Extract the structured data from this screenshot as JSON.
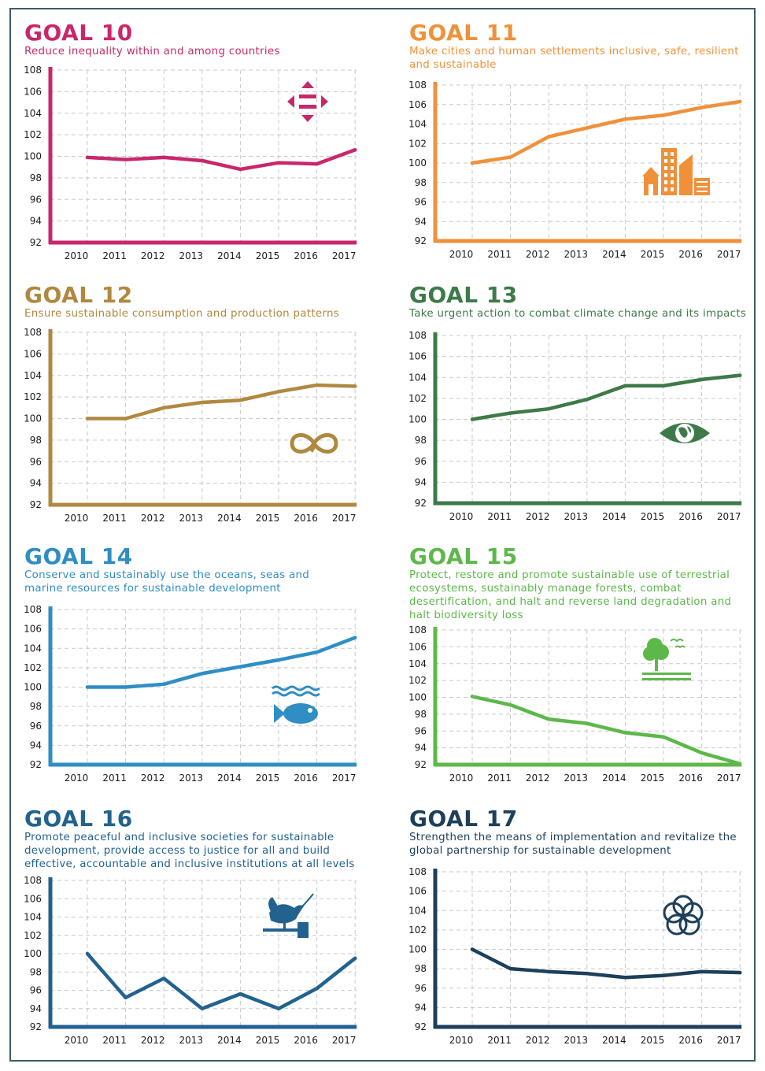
{
  "chart_data": [
    {
      "type": "line",
      "goal_label": "GOAL 10",
      "subtitle": "Reduce inequality within and among countries",
      "color": "#c8286b",
      "icon": "reduced-inequality-icon",
      "x": [
        "2010",
        "2011",
        "2012",
        "2013",
        "2014",
        "2015",
        "2016",
        "2017"
      ],
      "yticks": [
        "108",
        "106",
        "104",
        "102",
        "100",
        "98",
        "96",
        "94",
        "92"
      ],
      "ylim": [
        92,
        108
      ],
      "values": [
        99.9,
        99.7,
        99.9,
        99.6,
        98.8,
        99.4,
        99.3,
        100.6
      ],
      "grid": true
    },
    {
      "type": "line",
      "goal_label": "GOAL 11",
      "subtitle": "Make cities and human settlements inclusive, safe, resilient and sustainable",
      "color": "#f0913a",
      "icon": "sustainable-cities-icon",
      "x": [
        "2010",
        "2011",
        "2012",
        "2013",
        "2014",
        "2015",
        "2016",
        "2017"
      ],
      "yticks": [
        "108",
        "106",
        "104",
        "102",
        "100",
        "98",
        "96",
        "94",
        "92"
      ],
      "ylim": [
        92,
        108
      ],
      "values": [
        100.0,
        100.6,
        102.7,
        103.6,
        104.5,
        104.9,
        105.7,
        106.3
      ],
      "grid": true
    },
    {
      "type": "line",
      "goal_label": "GOAL 12",
      "subtitle": "Ensure sustainable consumption and production patterns",
      "color": "#b08840",
      "icon": "responsible-consumption-icon",
      "x": [
        "2010",
        "2011",
        "2012",
        "2013",
        "2014",
        "2015",
        "2016",
        "2017"
      ],
      "yticks": [
        "108",
        "106",
        "104",
        "102",
        "100",
        "98",
        "96",
        "94",
        "92"
      ],
      "ylim": [
        92,
        108
      ],
      "values": [
        100.0,
        100.0,
        101.0,
        101.5,
        101.7,
        102.5,
        103.1,
        103.0
      ],
      "grid": true
    },
    {
      "type": "line",
      "goal_label": "GOAL 13",
      "subtitle": "Take urgent action to combat climate change and its impacts",
      "color": "#3e7a49",
      "icon": "climate-action-eye-icon",
      "x": [
        "2010",
        "2011",
        "2012",
        "2013",
        "2014",
        "2015",
        "2016",
        "2017"
      ],
      "yticks": [
        "108",
        "106",
        "104",
        "102",
        "100",
        "98",
        "96",
        "94",
        "92"
      ],
      "ylim": [
        92,
        108
      ],
      "values": [
        100.0,
        100.6,
        101.0,
        101.9,
        103.2,
        103.2,
        103.8,
        104.2
      ],
      "grid": true
    },
    {
      "type": "line",
      "goal_label": "GOAL 14",
      "subtitle": "Conserve and sustainably use the oceans, seas and marine resources for sustainable development",
      "color": "#2f8ec4",
      "icon": "life-below-water-icon",
      "x": [
        "2010",
        "2011",
        "2012",
        "2013",
        "2014",
        "2015",
        "2016",
        "2017"
      ],
      "yticks": [
        "108",
        "106",
        "104",
        "102",
        "100",
        "98",
        "96",
        "94",
        "92"
      ],
      "ylim": [
        92,
        108
      ],
      "values": [
        100.0,
        100.0,
        100.3,
        101.4,
        102.1,
        102.8,
        103.6,
        105.1
      ],
      "grid": true
    },
    {
      "type": "line",
      "goal_label": "GOAL 15",
      "subtitle": "Protect, restore and promote sustainable use of terrestrial ecosystems, sustainably manage forests, combat desertification, and halt and reverse land degradation and halt biodiversity loss",
      "color": "#5db84a",
      "icon": "life-on-land-icon",
      "x": [
        "2010",
        "2011",
        "2012",
        "2013",
        "2014",
        "2015",
        "2016",
        "2017"
      ],
      "yticks": [
        "108",
        "106",
        "104",
        "102",
        "100",
        "98",
        "96",
        "94",
        "92"
      ],
      "ylim": [
        92,
        108
      ],
      "values": [
        100.1,
        99.1,
        97.4,
        96.9,
        95.8,
        95.3,
        93.4,
        92.1
      ],
      "grid": true
    },
    {
      "type": "line",
      "goal_label": "GOAL 16",
      "subtitle": "Promote peaceful and inclusive societies for sustainable development, provide access to justice for all and build effective, accountable and inclusive institutions at all levels",
      "color": "#21628f",
      "icon": "peace-justice-dove-icon",
      "x": [
        "2010",
        "2011",
        "2012",
        "2013",
        "2014",
        "2015",
        "2016",
        "2017"
      ],
      "yticks": [
        "108",
        "106",
        "104",
        "102",
        "100",
        "98",
        "96",
        "94",
        "92"
      ],
      "ylim": [
        92,
        108
      ],
      "values": [
        100.0,
        95.2,
        97.3,
        94.0,
        95.6,
        94.0,
        96.2,
        99.5
      ],
      "grid": true
    },
    {
      "type": "line",
      "goal_label": "GOAL 17",
      "subtitle": "Strengthen the means of implementation and revitalize the global partnership for sustainable development",
      "color": "#1d3f5a",
      "icon": "partnerships-rings-icon",
      "x": [
        "2010",
        "2011",
        "2012",
        "2013",
        "2014",
        "2015",
        "2016",
        "2017"
      ],
      "yticks": [
        "108",
        "106",
        "104",
        "102",
        "100",
        "98",
        "96",
        "94",
        "92"
      ],
      "ylim": [
        92,
        108
      ],
      "values": [
        100.0,
        98.0,
        97.7,
        97.5,
        97.1,
        97.3,
        97.7,
        97.6
      ],
      "grid": true
    }
  ]
}
